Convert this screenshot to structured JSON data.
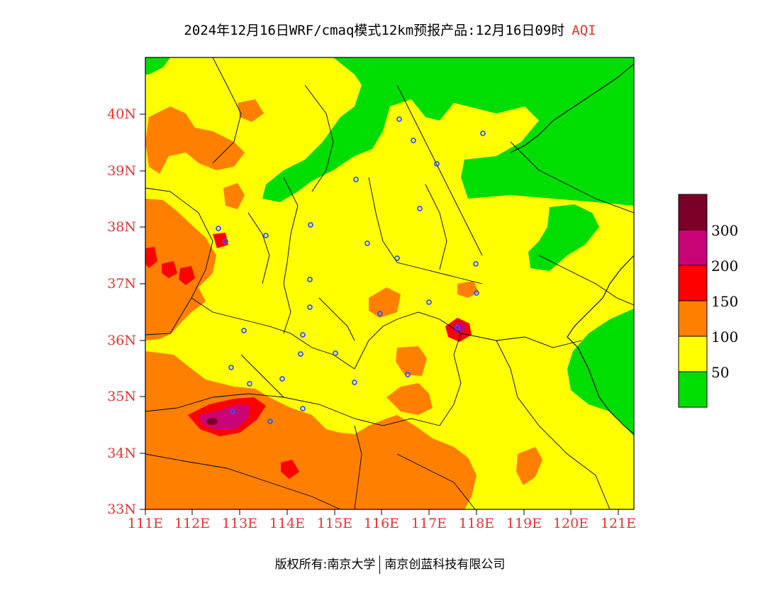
{
  "title": {
    "main": "2024年12月16日WRF/cmaq模式12km预报产品:12月16日09时",
    "aqi": "AQI"
  },
  "axes": {
    "y_labels": [
      "40N",
      "39N",
      "38N",
      "37N",
      "36N",
      "35N",
      "34N",
      "33N"
    ],
    "x_labels": [
      "111E",
      "112E",
      "113E",
      "114E",
      "115E",
      "116E",
      "117E",
      "118E",
      "119E",
      "120E",
      "121E"
    ]
  },
  "legend": {
    "labels": [
      "300",
      "200",
      "150",
      "100",
      "50"
    ],
    "colors": [
      "#7a0026",
      "#c90477",
      "#ff0000",
      "#ff8000",
      "#ffff00",
      "#00dd00"
    ]
  },
  "footer": {
    "left": "版权所有:南京大学",
    "right": "南京创蓝科技有限公司"
  },
  "colors": {
    "good": "#00dd00",
    "moderate": "#ffff00",
    "sensitive": "#ff8000",
    "unhealthy": "#ff0000",
    "very_unhealthy": "#c90477",
    "hazardous": "#7a0026",
    "tick_text": "#e8322f",
    "station_marker": "#3355ff"
  },
  "icons": {
    "station_marker": "monitoring-station-icon"
  }
}
